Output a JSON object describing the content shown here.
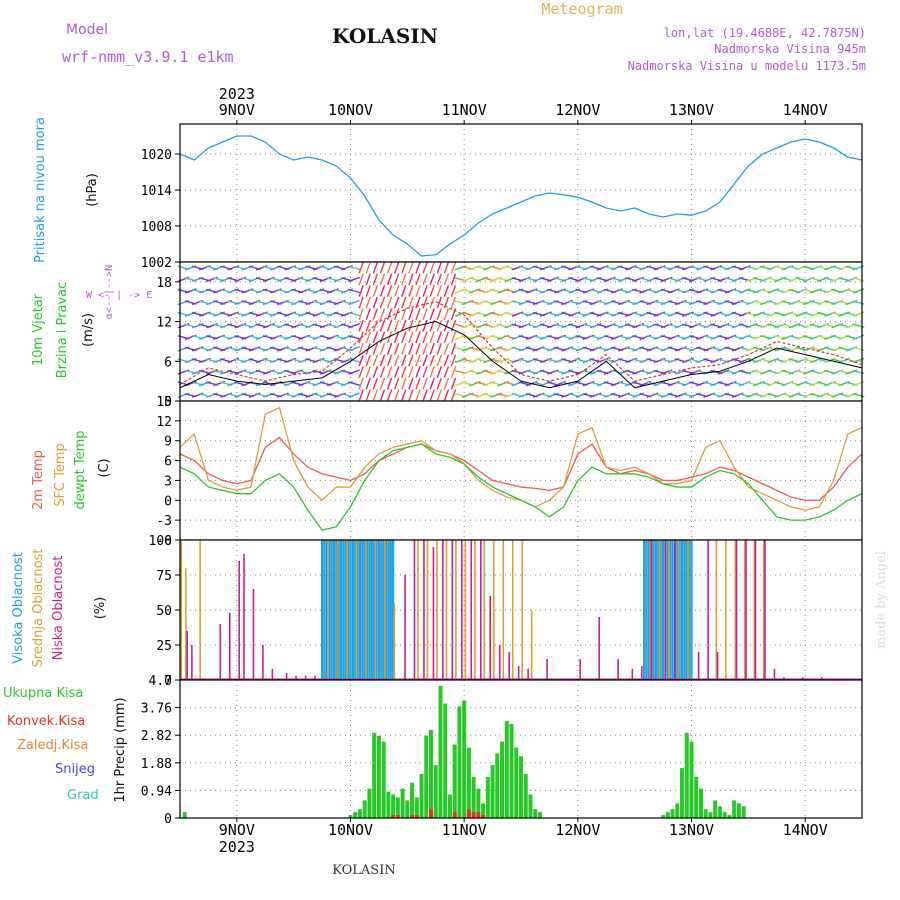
{
  "header": {
    "model_label": "Model",
    "model_name": "wrf-nmm_v3.9.1 e1km",
    "station": "KOLASIN",
    "title": "Meteogram",
    "lonlat": "lon,lat (19.4688E, 42.7875N)",
    "elevation": "Nadmorska Visina 945m",
    "model_elevation": "Nadmorska Visina u modelu 1173.5m",
    "footer_station": "KOLASIN",
    "credit": "made by Angel"
  },
  "colors": {
    "pressure": "#1ea0e6",
    "wind_speed": "#000000",
    "wind_gust": "#e63228",
    "temp2m": "#f05a50",
    "sfc_temp": "#dca032",
    "dewpt": "#28c828",
    "cloud_high": "#1ea0e6",
    "cloud_mid": "#dca032",
    "cloud_low": "#c81e96",
    "precip_total": "#28c828",
    "precip_conv": "#e63228",
    "precip_frz": "#f08030",
    "snow": "#4646e6",
    "graupel": "#32c8c8",
    "purple_text": "#b45ad2",
    "gold_text": "#dcb45a"
  },
  "chart_data": [
    {
      "type": "line",
      "panel": "pressure",
      "y_axis_text": [
        "Pritisak na nivou mora",
        "(hPa)"
      ],
      "x_start": "2023-11-08T12:00",
      "x_end": "2023-11-14T12:00",
      "ylim": [
        1002,
        1025
      ],
      "yticks": [
        1002,
        1008,
        1014,
        1020
      ],
      "series": [
        {
          "x": [
            0,
            3,
            6,
            9,
            12,
            15,
            18,
            21,
            24,
            27,
            30,
            33,
            36,
            39,
            42,
            45,
            48,
            51,
            54,
            57,
            60,
            63,
            66,
            69,
            72,
            75,
            78,
            81,
            84,
            87,
            90,
            93,
            96,
            99,
            102,
            105,
            108,
            111,
            114,
            117,
            120,
            123,
            126,
            129,
            132,
            135,
            138,
            141,
            144
          ],
          "y": [
            1020,
            1019,
            1021,
            1022,
            1023,
            1023,
            1022,
            1020,
            1019,
            1019.5,
            1019,
            1018,
            1016,
            1013,
            1009,
            1006.5,
            1005,
            1003,
            1003.2,
            1005,
            1006.5,
            1008.5,
            1010,
            1011,
            1012,
            1013,
            1013.5,
            1013.2,
            1012.8,
            1012,
            1011,
            1010.5,
            1011,
            1010,
            1009.5,
            1010,
            1009.8,
            1010.5,
            1012,
            1015,
            1018,
            1020,
            1021,
            1022,
            1022.5,
            1022,
            1021,
            1019.5,
            1019
          ]
        }
      ]
    },
    {
      "type": "line",
      "panel": "wind",
      "y_axis_text": [
        "10m Vjetar",
        "Brzina i Pravac",
        "(m/s)"
      ],
      "direction_key": [
        "W",
        "<-",
        "|",
        "->",
        "E",
        "α<-",
        "-|-",
        "->N"
      ],
      "ylim": [
        0,
        21
      ],
      "yticks": [
        0,
        6,
        12,
        18
      ],
      "series": [
        {
          "name": "speed",
          "x": [
            0,
            6,
            12,
            18,
            24,
            30,
            36,
            42,
            48,
            54,
            60,
            66,
            72,
            78,
            84,
            90,
            96,
            102,
            108,
            114,
            120,
            126,
            132,
            138,
            144
          ],
          "y": [
            2,
            4,
            3,
            2.5,
            3,
            3.5,
            6,
            9,
            11,
            12,
            10,
            6,
            3,
            2,
            3,
            6,
            2,
            3,
            4,
            4.5,
            6,
            8,
            7,
            6,
            5
          ]
        },
        {
          "name": "gust",
          "x": [
            0,
            6,
            12,
            18,
            24,
            30,
            36,
            42,
            48,
            54,
            60,
            66,
            72,
            78,
            84,
            90,
            96,
            102,
            108,
            114,
            120,
            126,
            132,
            138,
            144
          ],
          "y": [
            2.5,
            5,
            4,
            3,
            4,
            4.5,
            8,
            12,
            14,
            15,
            13,
            8,
            4,
            3,
            4,
            7,
            3,
            4,
            5,
            5.5,
            7,
            9,
            8,
            7,
            5.5
          ]
        }
      ]
    },
    {
      "type": "line",
      "panel": "temperature",
      "y_axis_text": [
        "2m Temp",
        "SFC Temp",
        "dewpt Temp",
        "(C)"
      ],
      "ylim": [
        -6,
        15
      ],
      "yticks": [
        -6,
        -3,
        0,
        3,
        6,
        9,
        12,
        15
      ],
      "series": [
        {
          "name": "2m Temp",
          "x": [
            0,
            3,
            6,
            9,
            12,
            15,
            18,
            21,
            24,
            27,
            30,
            33,
            36,
            39,
            42,
            45,
            48,
            51,
            54,
            57,
            60,
            63,
            66,
            69,
            72,
            75,
            78,
            81,
            84,
            87,
            90,
            93,
            96,
            99,
            102,
            105,
            108,
            111,
            114,
            117,
            120,
            123,
            126,
            129,
            132,
            135,
            138,
            141,
            144
          ],
          "y": [
            7,
            6,
            4,
            3,
            2.5,
            3,
            8,
            9.5,
            7,
            5,
            4,
            3.5,
            3,
            4,
            6,
            7,
            8,
            8.5,
            7.5,
            7,
            6,
            4.5,
            3,
            2.5,
            2,
            1.8,
            1.5,
            2,
            7,
            8.5,
            5,
            4,
            4.5,
            4,
            3,
            3,
            3.5,
            4,
            5,
            4.5,
            3.5,
            2.5,
            1.5,
            0.5,
            0,
            0,
            2,
            5,
            7
          ]
        },
        {
          "name": "SFC Temp",
          "x": [
            0,
            3,
            6,
            9,
            12,
            15,
            18,
            21,
            24,
            27,
            30,
            33,
            36,
            39,
            42,
            45,
            48,
            51,
            54,
            57,
            60,
            63,
            66,
            69,
            72,
            75,
            78,
            81,
            84,
            87,
            90,
            93,
            96,
            99,
            102,
            105,
            108,
            111,
            114,
            117,
            120,
            123,
            126,
            129,
            132,
            135,
            138,
            141,
            144
          ],
          "y": [
            8,
            10,
            3,
            2,
            1.5,
            2,
            13,
            14,
            6,
            2,
            0,
            2,
            2,
            5,
            7,
            8,
            8.5,
            9,
            7.5,
            7,
            5.5,
            3,
            1.5,
            0.5,
            0,
            -1,
            0,
            2,
            10,
            11,
            5,
            4.5,
            5,
            4,
            2.5,
            2.5,
            3,
            8,
            9,
            5,
            2,
            1,
            0,
            -1,
            -1.5,
            -1,
            3,
            10,
            11
          ]
        },
        {
          "name": "dewpt Temp",
          "x": [
            0,
            3,
            6,
            9,
            12,
            15,
            18,
            21,
            24,
            27,
            30,
            33,
            36,
            39,
            42,
            45,
            48,
            51,
            54,
            57,
            60,
            63,
            66,
            69,
            72,
            75,
            78,
            81,
            84,
            87,
            90,
            93,
            96,
            99,
            102,
            105,
            108,
            111,
            114,
            117,
            120,
            123,
            126,
            129,
            132,
            135,
            138,
            141,
            144
          ],
          "y": [
            5,
            4,
            2,
            1.5,
            1,
            1,
            3,
            4,
            2,
            -1.5,
            -4.5,
            -4,
            -1,
            3,
            6,
            7.5,
            8,
            8.5,
            7,
            6.5,
            5.5,
            3.5,
            2,
            1,
            0,
            -1,
            -2.5,
            -1,
            3,
            5,
            4,
            4,
            4,
            3.5,
            2.5,
            2,
            2,
            3.5,
            4.5,
            4,
            2.5,
            0,
            -2.5,
            -3,
            -3,
            -2.5,
            -1.5,
            0,
            1
          ]
        }
      ]
    },
    {
      "type": "bar",
      "panel": "clouds",
      "y_axis_text": [
        "Visoka Oblacnost",
        "Srednja Oblacnost",
        "Niska Oblacnost",
        "(%)"
      ],
      "ylim": [
        0,
        100
      ],
      "yticks": [
        0,
        25,
        50,
        75,
        100
      ],
      "series": [
        {
          "name": "Visoka Oblacnost",
          "x": [
            30,
            30.5,
            31,
            31.5,
            32,
            32.5,
            33,
            33.5,
            34,
            34.5,
            35,
            35.5,
            36,
            36.5,
            37,
            37.5,
            38,
            38.5,
            39,
            39.5,
            40,
            40.5,
            41,
            41.5,
            42,
            42.5,
            43,
            43.5,
            44,
            44.5,
            45,
            98,
            98.5,
            99,
            99.5,
            100,
            100.5,
            101,
            101.5,
            102,
            102.5,
            103,
            103.5,
            104,
            104.5,
            105,
            105.5,
            106,
            106.5,
            107,
            107.5,
            108
          ],
          "y": [
            100,
            100,
            100,
            100,
            100,
            100,
            100,
            100,
            100,
            100,
            100,
            100,
            100,
            100,
            100,
            100,
            100,
            100,
            100,
            100,
            100,
            100,
            100,
            100,
            100,
            100,
            100,
            100,
            100,
            100,
            100,
            100,
            100,
            100,
            100,
            100,
            100,
            100,
            100,
            100,
            100,
            100,
            100,
            100,
            100,
            100,
            100,
            100,
            100,
            100,
            100,
            100
          ]
        },
        {
          "name": "Srednja Oblacnost",
          "x": [
            0,
            1,
            4,
            31,
            33,
            35,
            37,
            39,
            41,
            43,
            45,
            50,
            52,
            54,
            56,
            58,
            60,
            62,
            64,
            66,
            68,
            70,
            72,
            74,
            99,
            101,
            103,
            105,
            107,
            113,
            115,
            117,
            119,
            121,
            123
          ],
          "y": [
            100,
            80,
            100,
            100,
            100,
            100,
            100,
            100,
            100,
            100,
            55,
            100,
            100,
            100,
            100,
            100,
            100,
            100,
            100,
            100,
            100,
            100,
            100,
            50,
            100,
            100,
            100,
            100,
            100,
            100,
            100,
            100,
            100,
            100,
            100
          ]
        },
        {
          "name": "Niska Oblacnost",
          "x": [
            1,
            2,
            8,
            10,
            12,
            13,
            15,
            17,
            19,
            22,
            24,
            26,
            28,
            47,
            49,
            51,
            53,
            55,
            57,
            59,
            61,
            63,
            65,
            67,
            69,
            71,
            73,
            77,
            84,
            88,
            92,
            95,
            97,
            99,
            102,
            104,
            109,
            111,
            113,
            117,
            119,
            121,
            123,
            125,
            127,
            131,
            135
          ],
          "y": [
            35,
            25,
            40,
            48,
            85,
            90,
            65,
            25,
            8,
            5,
            3,
            3,
            3,
            75,
            100,
            100,
            95,
            100,
            100,
            100,
            100,
            100,
            60,
            25,
            20,
            10,
            8,
            15,
            15,
            45,
            15,
            8,
            10,
            100,
            100,
            100,
            20,
            100,
            20,
            100,
            100,
            100,
            100,
            8,
            2,
            2,
            2
          ]
        }
      ]
    },
    {
      "type": "bar",
      "panel": "precip",
      "y_axis_text": [
        "1hr Precip (mm)"
      ],
      "legend": [
        "Ukupna Kisa",
        "Konvek.Kisa",
        "Zaledj.Kisa",
        "Snijeg",
        "Grad"
      ],
      "ylim": [
        0,
        4.7
      ],
      "yticks": [
        0,
        0.94,
        1.88,
        2.82,
        3.76,
        4.7
      ],
      "series": [
        {
          "name": "Ukupna Kisa",
          "x": [
            1,
            36,
            37,
            38,
            39,
            40,
            41,
            42,
            43,
            44,
            45,
            46,
            47,
            48,
            49,
            50,
            51,
            52,
            53,
            54,
            55,
            56,
            57,
            58,
            59,
            60,
            61,
            62,
            63,
            64,
            65,
            66,
            67,
            68,
            69,
            70,
            71,
            72,
            73,
            74,
            75,
            76,
            102,
            103,
            104,
            105,
            106,
            107,
            108,
            109,
            110,
            111,
            112,
            113,
            114,
            115,
            116,
            117,
            118,
            119
          ],
          "y": [
            0.2,
            0.1,
            0.2,
            0.3,
            0.6,
            1.0,
            2.9,
            2.8,
            2.6,
            0.9,
            0.8,
            0.7,
            1.0,
            0.6,
            1.2,
            0.7,
            1.5,
            2.8,
            3.0,
            1.8,
            4.5,
            3.9,
            0.8,
            2.5,
            3.8,
            4.0,
            2.4,
            1.4,
            1.0,
            0.5,
            1.4,
            1.8,
            2.2,
            2.6,
            3.3,
            3.2,
            2.4,
            2.1,
            1.5,
            0.8,
            0.3,
            0.2,
            0.1,
            0.2,
            0.3,
            0.5,
            1.7,
            2.9,
            2.6,
            1.4,
            1.0,
            0.3,
            0.2,
            0.6,
            0.4,
            0.2,
            0.1,
            0.6,
            0.5,
            0.4
          ]
        },
        {
          "name": "Konvek.Kisa",
          "x": [
            45,
            46,
            49,
            50,
            53,
            58,
            61,
            62,
            63,
            64
          ],
          "y": [
            0.1,
            0.1,
            0.1,
            0.1,
            0.3,
            0.2,
            0.3,
            0.2,
            0.2,
            0.1
          ]
        }
      ]
    }
  ],
  "axis": {
    "days": [
      "9NOV",
      "10NOV",
      "11NOV",
      "12NOV",
      "13NOV",
      "14NOV"
    ],
    "year": "2023"
  }
}
